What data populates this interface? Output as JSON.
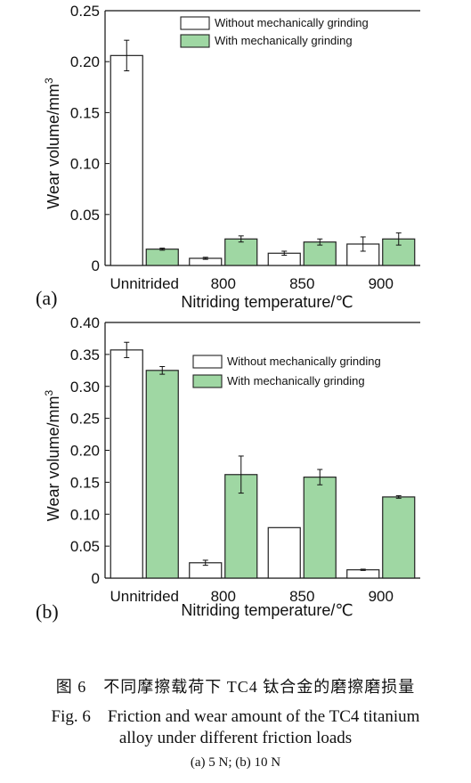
{
  "colors": {
    "without": "#ffffff",
    "with": "#9fd7a3",
    "stroke": "#222222"
  },
  "chart_data": [
    {
      "type": "bar",
      "panel_label": "(a)",
      "categories": [
        "Unnitrided",
        "800",
        "850",
        "900"
      ],
      "xlabel": "Nitriding temperature/℃",
      "ylabel": "Wear volume/mm",
      "ylabel_superscript": "3",
      "ylim": [
        0,
        0.25
      ],
      "yticks": [
        "0",
        "0.05",
        "0.10",
        "0.15",
        "0.20",
        "0.25"
      ],
      "ytick_values": [
        0,
        0.05,
        0.1,
        0.15,
        0.2,
        0.25
      ],
      "legend_placement": "top-right",
      "series": [
        {
          "name": "Without mechanically grinding",
          "color_key": "without",
          "values": [
            0.206,
            0.007,
            0.012,
            0.021
          ],
          "errors": [
            0.015,
            0.001,
            0.002,
            0.007
          ]
        },
        {
          "name": "With mechanically grinding",
          "color_key": "with",
          "values": [
            0.016,
            0.026,
            0.023,
            0.026
          ],
          "errors": [
            0.001,
            0.003,
            0.003,
            0.006
          ]
        }
      ]
    },
    {
      "type": "bar",
      "panel_label": "(b)",
      "categories": [
        "Unnitrided",
        "800",
        "850",
        "900"
      ],
      "xlabel": "Nitriding temperature/℃",
      "ylabel": "Wear volume/mm",
      "ylabel_superscript": "3",
      "ylim": [
        0,
        0.4
      ],
      "yticks": [
        "0",
        "0.05",
        "0.10",
        "0.15",
        "0.20",
        "0.25",
        "0.30",
        "0.35",
        "0.40"
      ],
      "ytick_values": [
        0,
        0.05,
        0.1,
        0.15,
        0.2,
        0.25,
        0.3,
        0.35,
        0.4
      ],
      "legend_placement": "top-right",
      "series": [
        {
          "name": "Without mechanically grinding",
          "color_key": "without",
          "values": [
            0.357,
            0.024,
            0.079,
            0.013
          ],
          "errors": [
            0.012,
            0.004,
            0,
            0.001
          ]
        },
        {
          "name": "With mechanically grinding",
          "color_key": "with",
          "values": [
            0.325,
            0.162,
            0.158,
            0.127
          ],
          "errors": [
            0.006,
            0.029,
            0.012,
            0.002
          ]
        }
      ]
    }
  ],
  "caption": {
    "zh": "图 6　不同摩擦载荷下 TC4 钛合金的磨擦磨损量",
    "en_line1": "Fig. 6　Friction and wear amount of the TC4 titanium",
    "en_line2": "alloy under different friction loads",
    "sub": "(a) 5 N; (b) 10 N"
  }
}
